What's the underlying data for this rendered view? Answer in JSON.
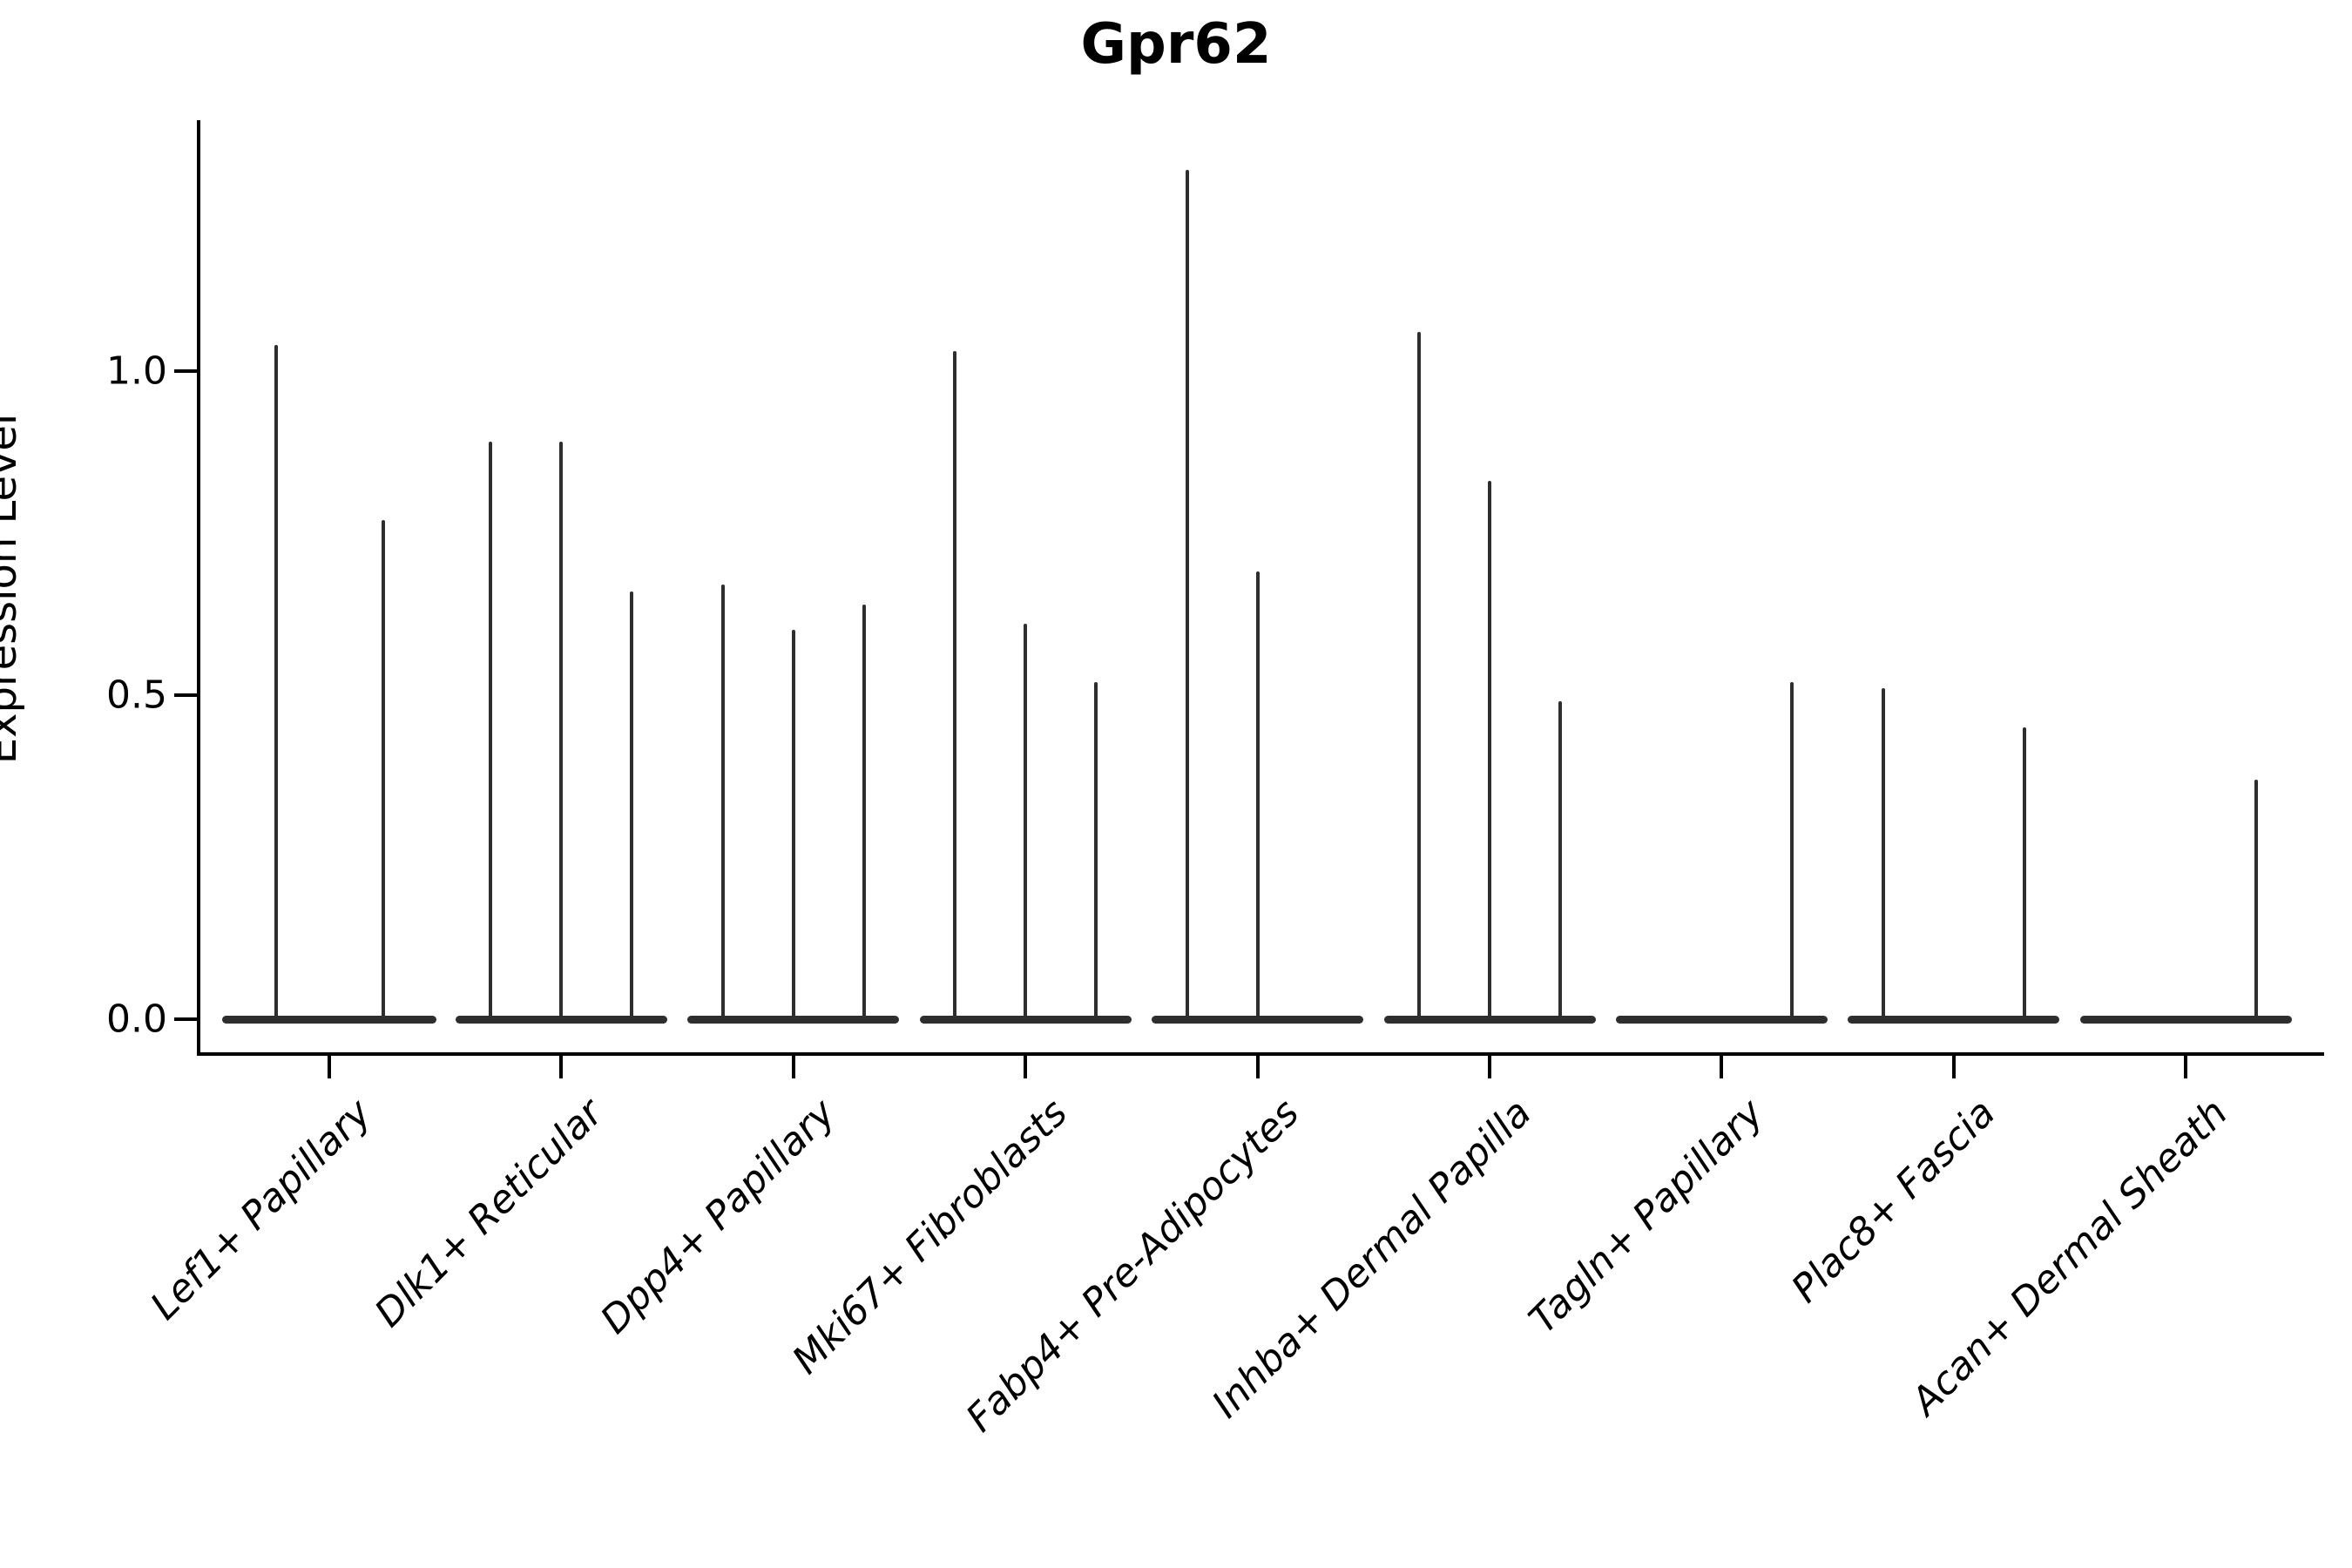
{
  "title": "Gpr62",
  "ylabel": "Expression Level",
  "chart_data": {
    "type": "violin",
    "title": "Gpr62",
    "xlabel": "",
    "ylabel": "Expression Level",
    "legend": "none",
    "grid": false,
    "ylim": [
      -0.055,
      1.385
    ],
    "yticks": [
      {
        "label": "0.0",
        "value": 0.0
      },
      {
        "label": "0.5",
        "value": 0.5
      },
      {
        "label": "1.0",
        "value": 1.0
      }
    ],
    "violin_color": "#2e2e2e",
    "axis_color": "#000000",
    "text_color": "#000000",
    "categories": [
      {
        "label": "Lef1+ Papillary",
        "violin_max": [
          1.04,
          0.77
        ]
      },
      {
        "label": "Dlk1+ Reticular",
        "violin_max": [
          0.89,
          0.89,
          0.66
        ]
      },
      {
        "label": "Dpp4+ Papillary",
        "violin_max": [
          0.67,
          0.6,
          0.64
        ]
      },
      {
        "label": "Mki67+ Fibroblasts",
        "violin_max": [
          1.03,
          0.61,
          0.52
        ]
      },
      {
        "label": "Fabp4+ Pre-Adipocytes",
        "violin_max": [
          1.31,
          0.69,
          0
        ]
      },
      {
        "label": "Inhba+ Dermal Papilla",
        "violin_max": [
          1.06,
          0.83,
          0.49
        ]
      },
      {
        "label": "Tagln+ Papillary",
        "violin_max": [
          0,
          0,
          0.52
        ]
      },
      {
        "label": "Plac8+ Fascia",
        "violin_max": [
          0.51,
          0,
          0.45
        ]
      },
      {
        "label": "Acan+ Dermal Sheath",
        "violin_max": [
          0,
          0,
          0.37
        ]
      }
    ]
  }
}
